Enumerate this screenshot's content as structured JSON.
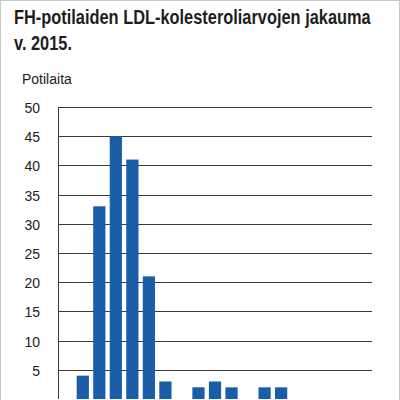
{
  "chart_data": {
    "type": "bar",
    "title": "FH-potilaiden LDL-kolesteroliarvojen jakauma v. 2015.",
    "ylabel": "Potilaita",
    "categories": [
      null,
      null,
      null,
      null,
      null,
      null,
      null,
      null,
      null,
      null,
      null,
      null,
      null,
      null,
      null,
      null,
      null,
      null,
      null
    ],
    "values": [
      0,
      4,
      33,
      45,
      41,
      21,
      3,
      0,
      2,
      3,
      2,
      0,
      2,
      2,
      0,
      0,
      0,
      0,
      0
    ],
    "color": "#1b5ea8",
    "ylim": [
      0,
      50
    ],
    "yticks": [
      5,
      10,
      15,
      20,
      25,
      30,
      35,
      40,
      45,
      50
    ],
    "grid": true,
    "tick_labels": "y"
  }
}
